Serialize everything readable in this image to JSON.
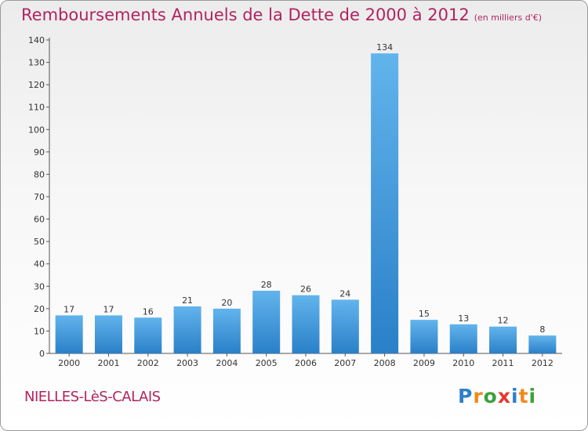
{
  "chart_title": "Remboursements Annuels de la Dette de 2000 à 2012",
  "chart_unit": "(en milliers d'€)",
  "commune": "NIELLES-LèS-CALAIS",
  "logo": {
    "letters": [
      "P",
      "r",
      "o",
      "x",
      "i",
      "t",
      "i"
    ],
    "colors": [
      "#2d7fc9",
      "#f08a1a",
      "#3aa23a",
      "#e33b2e",
      "#2d7fc9",
      "#f08a1a",
      "#3aa23a"
    ]
  },
  "colors": {
    "title": "#b0245e",
    "bar_light": "#5aaee8",
    "bar_dark": "#2e86cf",
    "axis": "#555555"
  },
  "chart_data": {
    "type": "bar",
    "categories": [
      "2000",
      "2001",
      "2002",
      "2003",
      "2004",
      "2005",
      "2006",
      "2007",
      "2008",
      "2009",
      "2010",
      "2011",
      "2012"
    ],
    "values": [
      17,
      17,
      16,
      21,
      20,
      28,
      26,
      24,
      134,
      15,
      13,
      12,
      8
    ],
    "ylim": [
      0,
      140
    ],
    "yticks": [
      0,
      10,
      20,
      30,
      40,
      50,
      60,
      70,
      80,
      90,
      100,
      110,
      120,
      130,
      140
    ],
    "grid": false,
    "data_labels": true
  }
}
